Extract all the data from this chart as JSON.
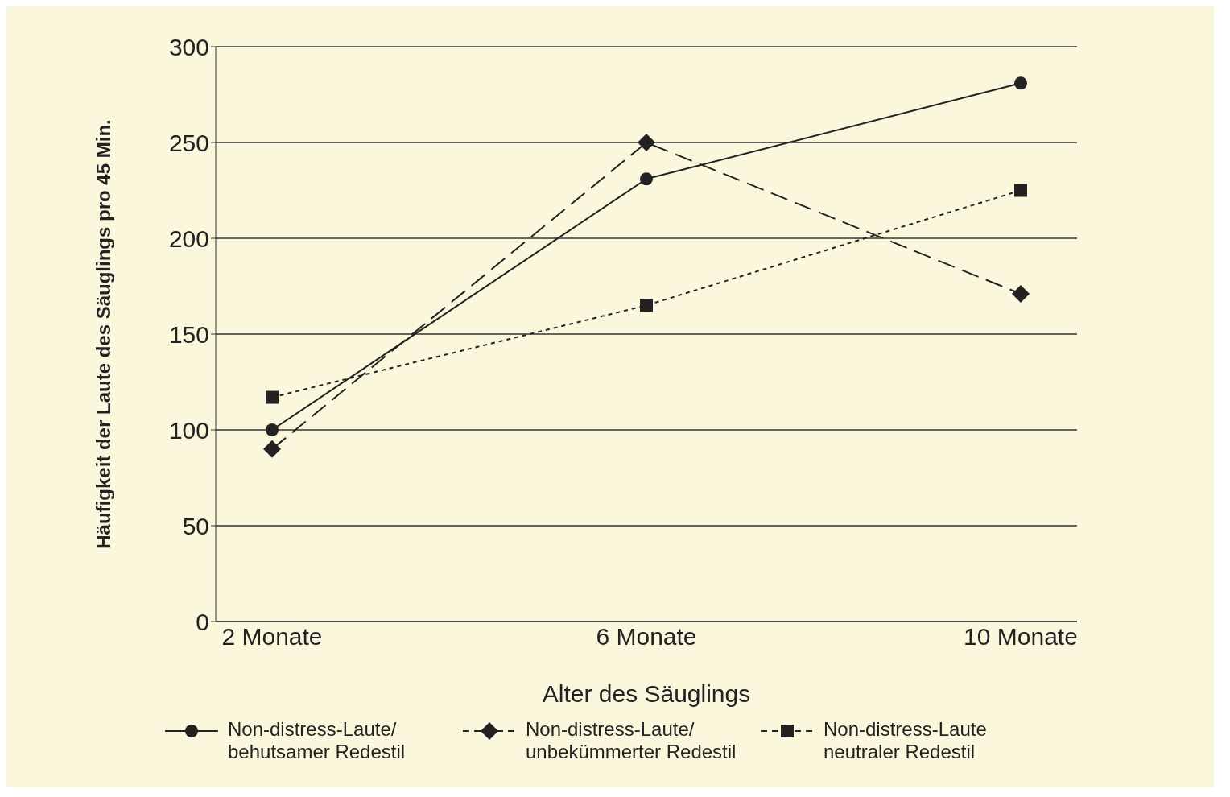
{
  "chart_data": {
    "type": "line",
    "xlabel": "Alter des Säuglings",
    "ylabel": "Häufigkeit der Laute des Säuglings pro 45 Min.",
    "categories": [
      "2 Monate",
      "6 Monate",
      "10 Monate"
    ],
    "series": [
      {
        "name": "Non-distress-Laute/ behutsamer Redestil",
        "color": "#222222",
        "values": [
          100,
          231,
          281
        ],
        "marker": "circle",
        "line_style": "solid"
      },
      {
        "name": "Non-distress-Laute/ unbekümmerter Redestil",
        "color": "#222222",
        "values": [
          90,
          250,
          171
        ],
        "marker": "diamond",
        "line_style": "dashed"
      },
      {
        "name": "Non-distress-Laute neutraler Redestil",
        "color": "#222222",
        "values": [
          117,
          165,
          225
        ],
        "marker": "square",
        "line_style": "dotted"
      }
    ],
    "ylim": [
      0,
      300
    ],
    "yticks": [
      0,
      50,
      100,
      150,
      200,
      250,
      300
    ],
    "grid": "y",
    "legend": "bottom"
  }
}
